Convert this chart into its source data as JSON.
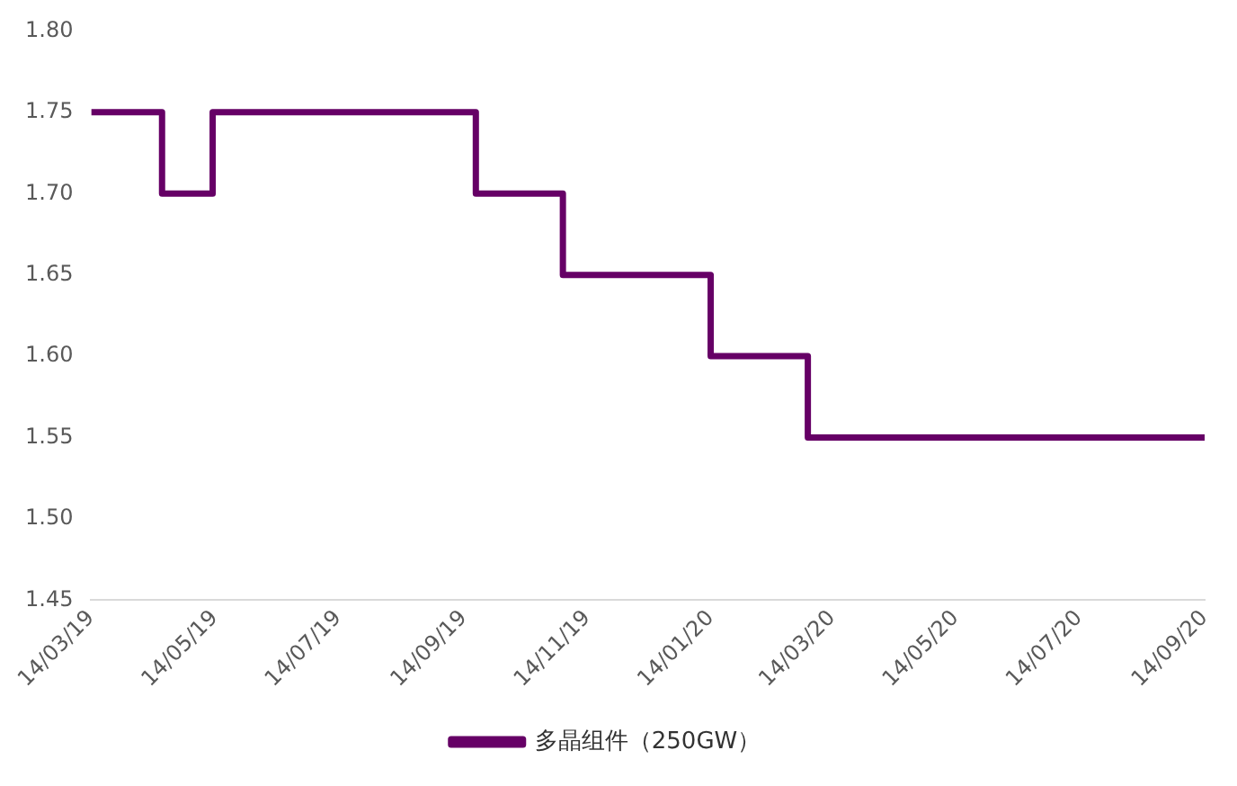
{
  "chart_data": {
    "type": "step",
    "x": [
      "2019-03-14",
      "2019-04-18",
      "2019-05-13",
      "2019-09-20",
      "2019-11-02",
      "2020-01-14",
      "2020-03-02",
      "2020-09-14"
    ],
    "series": [
      {
        "name": "多晶组件（250GW）",
        "color": "#660066",
        "values": [
          1.75,
          1.7,
          1.75,
          1.7,
          1.65,
          1.6,
          1.55,
          1.55
        ]
      }
    ],
    "xlim": [
      "2019-03-14",
      "2020-09-14"
    ],
    "xticks": [
      {
        "value": "2019-03-14",
        "label": "14/03/19"
      },
      {
        "value": "2019-05-14",
        "label": "14/05/19"
      },
      {
        "value": "2019-07-14",
        "label": "14/07/19"
      },
      {
        "value": "2019-09-14",
        "label": "14/09/19"
      },
      {
        "value": "2019-11-14",
        "label": "14/11/19"
      },
      {
        "value": "2020-01-14",
        "label": "14/01/20"
      },
      {
        "value": "2020-03-14",
        "label": "14/03/20"
      },
      {
        "value": "2020-05-14",
        "label": "14/05/20"
      },
      {
        "value": "2020-07-14",
        "label": "14/07/20"
      },
      {
        "value": "2020-09-14",
        "label": "14/09/20"
      }
    ],
    "ylim": [
      1.45,
      1.8
    ],
    "yticks": [
      1.45,
      {
        "value": 1.5,
        "label": "1.50"
      },
      1.55,
      {
        "value": 1.6,
        "label": "1.60"
      },
      1.65,
      {
        "value": 1.7,
        "label": "1.70"
      },
      1.75,
      {
        "value": 1.8,
        "label": "1.80"
      }
    ],
    "legend": "bottom",
    "grid": false
  }
}
